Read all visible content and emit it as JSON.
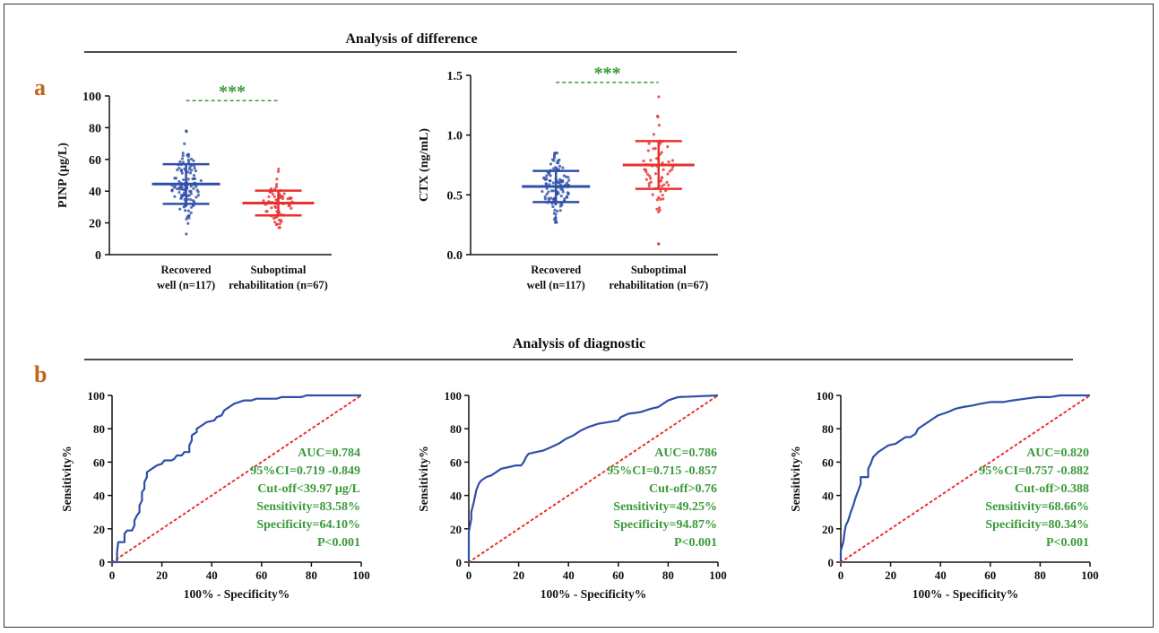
{
  "panel_a": {
    "label": "a",
    "section_title": "Analysis of difference",
    "significance": "***"
  },
  "panel_b": {
    "label": "b",
    "section_title": "Analysis of diagnostic"
  },
  "colors": {
    "group1": "#2f4fa8",
    "group2": "#e8312f",
    "roc_curve": "#2f4fa8",
    "reference": "#e8312f",
    "annotation": "#3a9a3a",
    "panel_label": "#c0651a",
    "significance": "#3a9a3a"
  },
  "chart_data": [
    {
      "type": "scatter",
      "subtype": "dot-plot-mean-sd",
      "title": "",
      "ylabel": "PINP (μg/L)",
      "ylim": [
        0,
        100
      ],
      "yticks": [
        "0",
        "20",
        "40",
        "60",
        "80",
        "100"
      ],
      "categories": [
        "Recovered well (n=117)",
        "Suboptimal rehabilitation (n=67)"
      ],
      "category_lines": [
        [
          "Recovered",
          "well (n=117)"
        ],
        [
          "Suboptimal",
          "rehabilitation (n=67)"
        ]
      ],
      "series": [
        {
          "n": 117,
          "mean": 44.5,
          "sd": 12.5,
          "min": 13,
          "max": 78
        },
        {
          "n": 67,
          "mean": 32.5,
          "sd": 7.8,
          "min": 17,
          "max": 54
        }
      ],
      "significance_y": 97
    },
    {
      "type": "scatter",
      "subtype": "dot-plot-mean-sd",
      "title": "",
      "ylabel": "CTX (ng/mL)",
      "ylim": [
        0,
        1.5
      ],
      "yticks": [
        "0.0",
        "0.5",
        "1.0",
        "1.5"
      ],
      "categories": [
        "Recovered well (n=117)",
        "Suboptimal rehabilitation (n=67)"
      ],
      "category_lines": [
        [
          "Recovered",
          "well (n=117)"
        ],
        [
          "Suboptimal",
          "rehabilitation (n=67)"
        ]
      ],
      "series": [
        {
          "n": 117,
          "mean": 0.57,
          "sd": 0.13,
          "min": 0.27,
          "max": 0.85
        },
        {
          "n": 67,
          "mean": 0.75,
          "sd": 0.2,
          "min": 0.09,
          "max": 1.32
        }
      ],
      "significance_y": 1.44
    },
    {
      "type": "line",
      "subtype": "roc",
      "xlabel": "100% - Specificity%",
      "ylabel": "Sensitivity%",
      "xlim": [
        0,
        100
      ],
      "ylim": [
        0,
        100
      ],
      "ticks": [
        "0",
        "20",
        "40",
        "60",
        "80",
        "100"
      ],
      "curve": [
        [
          0,
          0
        ],
        [
          2,
          0
        ],
        [
          2,
          6
        ],
        [
          2.5,
          12
        ],
        [
          5,
          12
        ],
        [
          5,
          17
        ],
        [
          6,
          19
        ],
        [
          8,
          19
        ],
        [
          9,
          22
        ],
        [
          9,
          25
        ],
        [
          10,
          28
        ],
        [
          11,
          30
        ],
        [
          11,
          34
        ],
        [
          12,
          37
        ],
        [
          12,
          42
        ],
        [
          13,
          44
        ],
        [
          13,
          48
        ],
        [
          14,
          51
        ],
        [
          14,
          54
        ],
        [
          16,
          56
        ],
        [
          18,
          58
        ],
        [
          20,
          59
        ],
        [
          21,
          61
        ],
        [
          24,
          61
        ],
        [
          25,
          62
        ],
        [
          26,
          64
        ],
        [
          28,
          64
        ],
        [
          29,
          66
        ],
        [
          31,
          66
        ],
        [
          31,
          70
        ],
        [
          32,
          73
        ],
        [
          32,
          76
        ],
        [
          34,
          78
        ],
        [
          34,
          80
        ],
        [
          36,
          82
        ],
        [
          38,
          84
        ],
        [
          41,
          85
        ],
        [
          42,
          87
        ],
        [
          44,
          88
        ],
        [
          45,
          91
        ],
        [
          47,
          93
        ],
        [
          49,
          95
        ],
        [
          51,
          96
        ],
        [
          53,
          97
        ],
        [
          56,
          97
        ],
        [
          58,
          98
        ],
        [
          66,
          98
        ],
        [
          68,
          99
        ],
        [
          76,
          99
        ],
        [
          78,
          100
        ],
        [
          100,
          100
        ]
      ],
      "annotations": [
        "AUC=0.784",
        "95%CI=0.719 -0.849",
        "Cut-off<39.97 μg/L",
        "Sensitivity=83.58%",
        "Specificity=64.10%",
        "P<0.001"
      ]
    },
    {
      "type": "line",
      "subtype": "roc",
      "xlabel": "100% - Specificity%",
      "ylabel": "Sensitivity%",
      "xlim": [
        0,
        100
      ],
      "ylim": [
        0,
        100
      ],
      "ticks": [
        "0",
        "20",
        "40",
        "60",
        "80",
        "100"
      ],
      "curve": [
        [
          0,
          0
        ],
        [
          0,
          18
        ],
        [
          1,
          26
        ],
        [
          1,
          30
        ],
        [
          2,
          36
        ],
        [
          3,
          43
        ],
        [
          4,
          47
        ],
        [
          5,
          49
        ],
        [
          7,
          51
        ],
        [
          9,
          52
        ],
        [
          11,
          54
        ],
        [
          13,
          56
        ],
        [
          16,
          57
        ],
        [
          19,
          58
        ],
        [
          21,
          58
        ],
        [
          22,
          60
        ],
        [
          23,
          63
        ],
        [
          24,
          65
        ],
        [
          27,
          66
        ],
        [
          30,
          67
        ],
        [
          33,
          69
        ],
        [
          36,
          71
        ],
        [
          39,
          74
        ],
        [
          42,
          76
        ],
        [
          45,
          79
        ],
        [
          48,
          81
        ],
        [
          52,
          83
        ],
        [
          56,
          84
        ],
        [
          60,
          85
        ],
        [
          61,
          87
        ],
        [
          64,
          89
        ],
        [
          69,
          90
        ],
        [
          73,
          92
        ],
        [
          76,
          93
        ],
        [
          78,
          95
        ],
        [
          80,
          97
        ],
        [
          82,
          98
        ],
        [
          84,
          99
        ],
        [
          100,
          100
        ]
      ],
      "annotations": [
        "AUC=0.786",
        "95%CI=0.715 -0.857",
        "Cut-off>0.76",
        "Sensitivity=49.25%",
        "Specificity=94.87%",
        "P<0.001"
      ]
    },
    {
      "type": "line",
      "subtype": "roc",
      "xlabel": "100% - Specificity%",
      "ylabel": "Sensitivity%",
      "xlim": [
        0,
        100
      ],
      "ylim": [
        0,
        100
      ],
      "ticks": [
        "0",
        "20",
        "40",
        "60",
        "80",
        "100"
      ],
      "curve": [
        [
          0,
          0
        ],
        [
          0,
          7
        ],
        [
          1,
          12
        ],
        [
          1.5,
          18
        ],
        [
          2,
          22
        ],
        [
          3,
          25
        ],
        [
          4,
          30
        ],
        [
          5,
          34
        ],
        [
          6,
          39
        ],
        [
          7,
          43
        ],
        [
          8,
          47
        ],
        [
          8,
          51
        ],
        [
          11,
          51
        ],
        [
          11,
          56
        ],
        [
          12,
          59
        ],
        [
          13,
          63
        ],
        [
          15,
          66
        ],
        [
          17,
          68
        ],
        [
          19,
          70
        ],
        [
          22,
          71
        ],
        [
          24,
          73
        ],
        [
          26,
          75
        ],
        [
          28,
          75
        ],
        [
          30,
          77
        ],
        [
          31,
          80
        ],
        [
          33,
          82
        ],
        [
          35,
          84
        ],
        [
          37,
          86
        ],
        [
          39,
          88
        ],
        [
          41,
          89
        ],
        [
          43,
          90
        ],
        [
          46,
          92
        ],
        [
          49,
          93
        ],
        [
          53,
          94
        ],
        [
          56,
          95
        ],
        [
          60,
          96
        ],
        [
          65,
          96
        ],
        [
          69,
          97
        ],
        [
          74,
          98
        ],
        [
          79,
          99
        ],
        [
          84,
          99
        ],
        [
          88,
          100
        ],
        [
          100,
          100
        ]
      ],
      "annotations": [
        "AUC=0.820",
        "95%CI=0.757 -0.882",
        "Cut-off>0.388",
        "Sensitivity=68.66%",
        "Specificity=80.34%",
        "P<0.001"
      ]
    }
  ]
}
